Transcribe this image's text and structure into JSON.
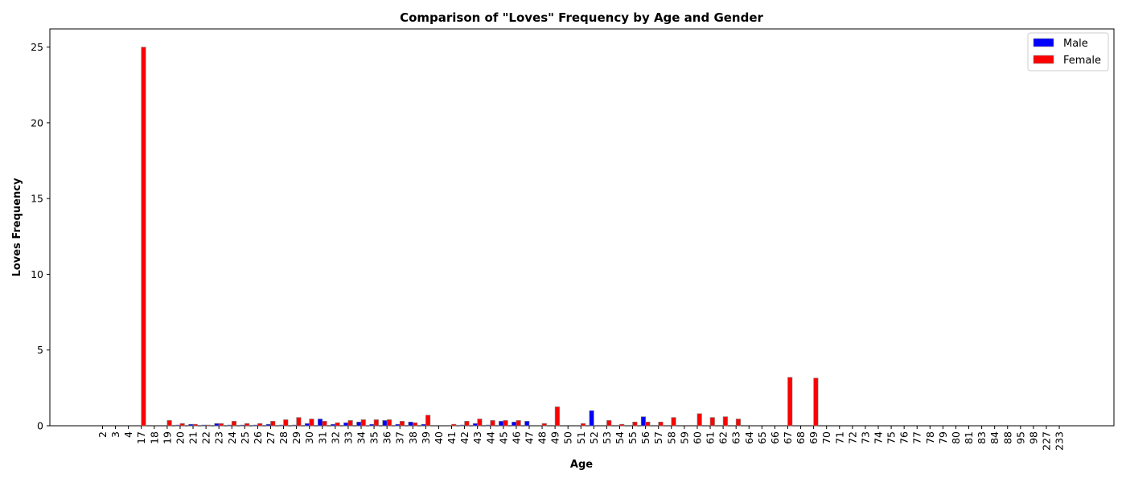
{
  "chart_data": {
    "type": "bar",
    "title": "Comparison of \"Loves\" Frequency by Age and Gender",
    "xlabel": "Age",
    "ylabel": "Loves Frequency",
    "ylim": [
      0,
      26.2
    ],
    "yticks": [
      0,
      5,
      10,
      15,
      20,
      25
    ],
    "grid": false,
    "legend_position": "top-right",
    "categories": [
      "2",
      "3",
      "4",
      "17",
      "18",
      "19",
      "20",
      "21",
      "22",
      "23",
      "24",
      "25",
      "26",
      "27",
      "28",
      "29",
      "30",
      "31",
      "32",
      "33",
      "34",
      "35",
      "36",
      "37",
      "38",
      "39",
      "40",
      "41",
      "42",
      "43",
      "44",
      "45",
      "46",
      "47",
      "48",
      "49",
      "50",
      "51",
      "52",
      "53",
      "54",
      "55",
      "56",
      "57",
      "58",
      "59",
      "60",
      "61",
      "62",
      "63",
      "64",
      "65",
      "66",
      "67",
      "68",
      "69",
      "70",
      "71",
      "72",
      "73",
      "74",
      "75",
      "76",
      "77",
      "78",
      "79",
      "80",
      "81",
      "83",
      "84",
      "88",
      "95",
      "98",
      "227",
      "233"
    ],
    "series": [
      {
        "name": "Male",
        "color": "#0000ff",
        "values": [
          0,
          0,
          0,
          0,
          0,
          0,
          0.05,
          0.1,
          0.05,
          0.15,
          0.05,
          0.05,
          0.05,
          0.1,
          0.05,
          0.05,
          0.15,
          0.45,
          0.1,
          0.2,
          0.25,
          0.1,
          0.35,
          0.1,
          0.25,
          0.1,
          0,
          0,
          0.05,
          0.15,
          0.05,
          0.3,
          0.25,
          0.3,
          0,
          0,
          0,
          0,
          1.0,
          0,
          0,
          0,
          0.6,
          0,
          0,
          0,
          0,
          0,
          0,
          0,
          0,
          0,
          0,
          0,
          0,
          0,
          0,
          0,
          0,
          0,
          0,
          0,
          0,
          0,
          0,
          0,
          0,
          0,
          0,
          0,
          0,
          0,
          0,
          0,
          0
        ]
      },
      {
        "name": "Female",
        "color": "#ff0000",
        "values": [
          0,
          0,
          0,
          25.0,
          0,
          0.35,
          0.15,
          0.1,
          0.05,
          0.15,
          0.3,
          0.15,
          0.15,
          0.3,
          0.4,
          0.55,
          0.45,
          0.3,
          0.2,
          0.35,
          0.4,
          0.4,
          0.4,
          0.3,
          0.2,
          0.7,
          0,
          0.1,
          0.3,
          0.45,
          0.35,
          0.35,
          0.35,
          0,
          0.15,
          1.25,
          0,
          0.15,
          0,
          0.35,
          0.1,
          0.25,
          0.25,
          0.25,
          0.55,
          0,
          0.8,
          0.55,
          0.6,
          0.45,
          0,
          0,
          0,
          3.2,
          0,
          3.15,
          0,
          0,
          0,
          0,
          0,
          0,
          0,
          0,
          0,
          0,
          0,
          0,
          0,
          0,
          0,
          0,
          0,
          0,
          0
        ]
      }
    ]
  }
}
